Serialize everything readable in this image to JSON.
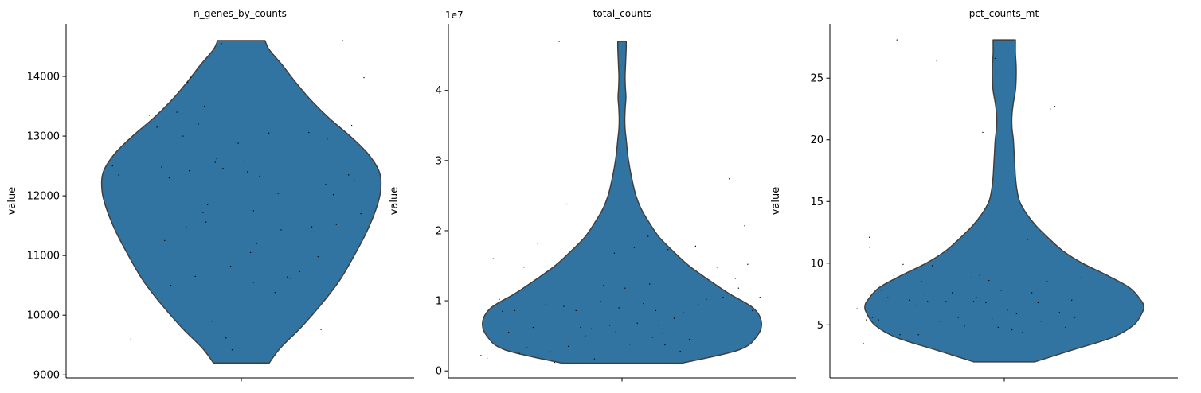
{
  "chart_data": [
    {
      "type": "violin",
      "title": "n_genes_by_counts",
      "xlabel": "",
      "ylabel": "value",
      "ylim": [
        8950,
        14880
      ],
      "yticks": [
        9000,
        10000,
        11000,
        12000,
        13000,
        14000
      ],
      "ytick_labels": [
        "9000",
        "10000",
        "11000",
        "12000",
        "13000",
        "14000"
      ],
      "scale_label": "",
      "color": "#3274a1",
      "data_range": [
        9200,
        14600
      ],
      "density": [
        [
          9200,
          0.2
        ],
        [
          9450,
          0.28
        ],
        [
          9800,
          0.43
        ],
        [
          10200,
          0.58
        ],
        [
          10600,
          0.71
        ],
        [
          11000,
          0.81
        ],
        [
          11400,
          0.9
        ],
        [
          11800,
          0.97
        ],
        [
          12100,
          1.0
        ],
        [
          12400,
          0.99
        ],
        [
          12700,
          0.91
        ],
        [
          13000,
          0.78
        ],
        [
          13300,
          0.63
        ],
        [
          13600,
          0.5
        ],
        [
          13900,
          0.39
        ],
        [
          14200,
          0.29
        ],
        [
          14450,
          0.2
        ],
        [
          14600,
          0.17
        ]
      ],
      "points": [
        [
          -0.84,
          12500
        ],
        [
          -0.8,
          12350
        ],
        [
          -0.72,
          9600
        ],
        [
          -0.6,
          13350
        ],
        [
          -0.55,
          13150
        ],
        [
          -0.52,
          12480
        ],
        [
          -0.5,
          11250
        ],
        [
          -0.47,
          12300
        ],
        [
          -0.46,
          10500
        ],
        [
          -0.42,
          13400
        ],
        [
          -0.38,
          13000
        ],
        [
          -0.36,
          11480
        ],
        [
          -0.35,
          13900
        ],
        [
          -0.34,
          12420
        ],
        [
          -0.33,
          13980
        ],
        [
          -0.3,
          10650
        ],
        [
          -0.28,
          13200
        ],
        [
          -0.26,
          11980
        ],
        [
          -0.25,
          11720
        ],
        [
          -0.24,
          13500
        ],
        [
          -0.23,
          11560
        ],
        [
          -0.22,
          11850
        ],
        [
          -0.19,
          9900
        ],
        [
          -0.17,
          12560
        ],
        [
          -0.16,
          12620
        ],
        [
          -0.13,
          14550
        ],
        [
          -0.12,
          12460
        ],
        [
          -0.1,
          9620
        ],
        [
          -0.07,
          10820
        ],
        [
          -0.06,
          9420
        ],
        [
          -0.04,
          12900
        ],
        [
          -0.02,
          12880
        ],
        [
          0.02,
          12580
        ],
        [
          0.04,
          12400
        ],
        [
          0.06,
          11050
        ],
        [
          0.08,
          10550
        ],
        [
          0.08,
          11750
        ],
        [
          0.1,
          11200
        ],
        [
          0.12,
          12330
        ],
        [
          0.18,
          13050
        ],
        [
          0.22,
          10380
        ],
        [
          0.24,
          12040
        ],
        [
          0.26,
          11430
        ],
        [
          0.3,
          10640
        ],
        [
          0.32,
          10620
        ],
        [
          0.38,
          10730
        ],
        [
          0.44,
          13060
        ],
        [
          0.46,
          11480
        ],
        [
          0.48,
          11400
        ],
        [
          0.5,
          10980
        ],
        [
          0.52,
          9760
        ],
        [
          0.55,
          12190
        ],
        [
          0.56,
          12950
        ],
        [
          0.6,
          12020
        ],
        [
          0.62,
          11520
        ],
        [
          0.66,
          14600
        ],
        [
          0.7,
          12350
        ],
        [
          0.72,
          13180
        ],
        [
          0.74,
          12250
        ],
        [
          0.76,
          12380
        ],
        [
          0.78,
          11700
        ],
        [
          0.8,
          13980
        ]
      ]
    },
    {
      "type": "violin",
      "title": "total_counts",
      "xlabel": "",
      "ylabel": "value",
      "ylim": [
        -1000000,
        49500000
      ],
      "yticks": [
        0,
        10000000,
        20000000,
        30000000,
        40000000
      ],
      "ytick_labels": [
        "0",
        "1",
        "2",
        "3",
        "4"
      ],
      "scale_label": "1e7",
      "color": "#3274a1",
      "data_range": [
        1100000,
        47000000
      ],
      "density": [
        [
          1100000,
          0.43
        ],
        [
          3000000,
          0.84
        ],
        [
          5000000,
          0.97
        ],
        [
          7000000,
          1.0
        ],
        [
          9000000,
          0.94
        ],
        [
          11000000,
          0.77
        ],
        [
          13000000,
          0.62
        ],
        [
          15000000,
          0.48
        ],
        [
          17000000,
          0.37
        ],
        [
          19000000,
          0.27
        ],
        [
          21000000,
          0.2
        ],
        [
          23000000,
          0.14
        ],
        [
          25000000,
          0.1
        ],
        [
          27000000,
          0.075
        ],
        [
          29000000,
          0.055
        ],
        [
          31000000,
          0.04
        ],
        [
          33000000,
          0.03
        ],
        [
          34500000,
          0.022
        ],
        [
          36000000,
          0.02
        ],
        [
          37500000,
          0.023
        ],
        [
          39000000,
          0.028
        ],
        [
          40500000,
          0.024
        ],
        [
          42000000,
          0.022
        ],
        [
          44000000,
          0.026
        ],
        [
          46000000,
          0.03
        ],
        [
          47000000,
          0.03
        ]
      ],
      "points": [
        [
          -0.92,
          2200000
        ],
        [
          -0.88,
          1800000
        ],
        [
          -0.84,
          16000000
        ],
        [
          -0.8,
          10200000
        ],
        [
          -0.78,
          8500000
        ],
        [
          -0.74,
          5500000
        ],
        [
          -0.7,
          8600000
        ],
        [
          -0.67,
          2500000
        ],
        [
          -0.64,
          14800000
        ],
        [
          -0.62,
          3300000
        ],
        [
          -0.58,
          6200000
        ],
        [
          -0.55,
          18200000
        ],
        [
          -0.5,
          9400000
        ],
        [
          -0.47,
          2800000
        ],
        [
          -0.44,
          1200000
        ],
        [
          -0.41,
          47000000
        ],
        [
          -0.38,
          9200000
        ],
        [
          -0.36,
          23800000
        ],
        [
          -0.35,
          3500000
        ],
        [
          -0.3,
          8600000
        ],
        [
          -0.27,
          6200000
        ],
        [
          -0.24,
          5000000
        ],
        [
          -0.2,
          6000000
        ],
        [
          -0.18,
          1700000
        ],
        [
          -0.14,
          9900000
        ],
        [
          -0.12,
          12200000
        ],
        [
          -0.08,
          6500000
        ],
        [
          -0.05,
          16800000
        ],
        [
          -0.04,
          5600000
        ],
        [
          -0.02,
          9000000
        ],
        [
          0.02,
          11800000
        ],
        [
          0.05,
          3800000
        ],
        [
          0.08,
          17600000
        ],
        [
          0.1,
          6800000
        ],
        [
          0.14,
          9600000
        ],
        [
          0.17,
          19200000
        ],
        [
          0.18,
          12400000
        ],
        [
          0.2,
          4800000
        ],
        [
          0.22,
          8600000
        ],
        [
          0.24,
          6500000
        ],
        [
          0.26,
          5400000
        ],
        [
          0.28,
          3700000
        ],
        [
          0.3,
          17300000
        ],
        [
          0.32,
          8200000
        ],
        [
          0.34,
          7500000
        ],
        [
          0.38,
          2800000
        ],
        [
          0.4,
          8300000
        ],
        [
          0.44,
          4500000
        ],
        [
          0.48,
          17800000
        ],
        [
          0.5,
          9400000
        ],
        [
          0.55,
          10200000
        ],
        [
          0.6,
          38200000
        ],
        [
          0.62,
          14800000
        ],
        [
          0.66,
          10500000
        ],
        [
          0.7,
          27400000
        ],
        [
          0.74,
          13200000
        ],
        [
          0.76,
          11800000
        ],
        [
          0.8,
          20700000
        ],
        [
          0.82,
          15200000
        ],
        [
          0.85,
          8600000
        ],
        [
          0.9,
          10500000
        ]
      ]
    },
    {
      "type": "violin",
      "title": "pct_counts_mt",
      "xlabel": "",
      "ylabel": "value",
      "ylim": [
        0.7,
        29.4
      ],
      "yticks": [
        5,
        10,
        15,
        20,
        25
      ],
      "ytick_labels": [
        "5",
        "10",
        "15",
        "20",
        "25"
      ],
      "scale_label": "",
      "color": "#3274a1",
      "data_range": [
        2.0,
        28.1
      ],
      "density": [
        [
          2.0,
          0.22
        ],
        [
          3.0,
          0.5
        ],
        [
          4.0,
          0.78
        ],
        [
          5.0,
          0.93
        ],
        [
          6.0,
          0.99
        ],
        [
          6.5,
          1.0
        ],
        [
          7.0,
          0.98
        ],
        [
          8.0,
          0.9
        ],
        [
          9.0,
          0.74
        ],
        [
          10.0,
          0.56
        ],
        [
          11.0,
          0.42
        ],
        [
          12.0,
          0.32
        ],
        [
          13.0,
          0.23
        ],
        [
          14.0,
          0.16
        ],
        [
          15.0,
          0.11
        ],
        [
          16.0,
          0.09
        ],
        [
          17.0,
          0.08
        ],
        [
          18.0,
          0.075
        ],
        [
          19.0,
          0.07
        ],
        [
          20.0,
          0.065
        ],
        [
          21.0,
          0.055
        ],
        [
          22.0,
          0.055
        ],
        [
          23.0,
          0.065
        ],
        [
          24.0,
          0.08
        ],
        [
          25.0,
          0.085
        ],
        [
          26.0,
          0.085
        ],
        [
          27.0,
          0.08
        ],
        [
          28.1,
          0.08
        ]
      ],
      "points": [
        [
          -0.96,
          6.3
        ],
        [
          -0.92,
          3.5
        ],
        [
          -0.9,
          5.4
        ],
        [
          -0.88,
          11.3
        ],
        [
          -0.88,
          12.1
        ],
        [
          -0.86,
          5.6
        ],
        [
          -0.82,
          5.4
        ],
        [
          -0.8,
          7.8
        ],
        [
          -0.76,
          7.2
        ],
        [
          -0.72,
          9.0
        ],
        [
          -0.7,
          28.1
        ],
        [
          -0.68,
          4.2
        ],
        [
          -0.66,
          9.9
        ],
        [
          -0.62,
          7.0
        ],
        [
          -0.58,
          6.6
        ],
        [
          -0.56,
          4.2
        ],
        [
          -0.54,
          8.5
        ],
        [
          -0.52,
          7.5
        ],
        [
          -0.5,
          6.9
        ],
        [
          -0.47,
          9.8
        ],
        [
          -0.44,
          26.4
        ],
        [
          -0.42,
          5.3
        ],
        [
          -0.38,
          6.9
        ],
        [
          -0.34,
          7.6
        ],
        [
          -0.3,
          5.6
        ],
        [
          -0.26,
          4.9
        ],
        [
          -0.22,
          8.8
        ],
        [
          -0.2,
          6.9
        ],
        [
          -0.18,
          7.2
        ],
        [
          -0.16,
          9.0
        ],
        [
          -0.14,
          20.6
        ],
        [
          -0.12,
          6.8
        ],
        [
          -0.1,
          8.6
        ],
        [
          -0.08,
          5.5
        ],
        [
          -0.06,
          26.6
        ],
        [
          -0.04,
          4.8
        ],
        [
          -0.02,
          7.8
        ],
        [
          0.02,
          6.2
        ],
        [
          0.05,
          4.6
        ],
        [
          0.08,
          5.9
        ],
        [
          0.12,
          4.4
        ],
        [
          0.15,
          11.9
        ],
        [
          0.18,
          7.6
        ],
        [
          0.22,
          6.8
        ],
        [
          0.24,
          5.3
        ],
        [
          0.28,
          8.5
        ],
        [
          0.3,
          22.5
        ],
        [
          0.33,
          22.7
        ],
        [
          0.36,
          6.0
        ],
        [
          0.4,
          4.8
        ],
        [
          0.44,
          7.0
        ],
        [
          0.46,
          5.6
        ],
        [
          0.5,
          8.8
        ]
      ]
    }
  ]
}
